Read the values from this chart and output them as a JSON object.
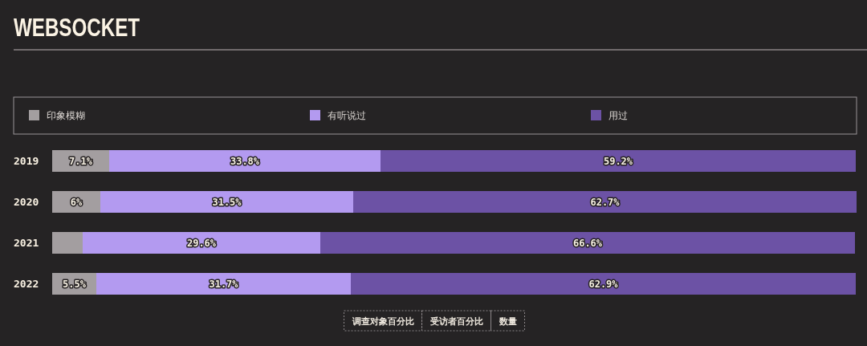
{
  "chart_data": {
    "type": "bar",
    "title": "WEBSOCKET",
    "orientation": "horizontal",
    "stacked": true,
    "categories": [
      "2019",
      "2020",
      "2021",
      "2022"
    ],
    "series": [
      {
        "name": "印象模糊",
        "color": "#a39ea0",
        "values": [
          7.1,
          6,
          3.8,
          5.5
        ],
        "value_labels": [
          "7.1%",
          "6%",
          null,
          "5.5%"
        ]
      },
      {
        "name": "有听说过",
        "color": "#b39af0",
        "values": [
          33.8,
          31.5,
          29.6,
          31.7
        ],
        "value_labels": [
          "33.8%",
          "31.5%",
          "29.6%",
          "31.7%"
        ]
      },
      {
        "name": "用过",
        "color": "#6c52a5",
        "values": [
          59.2,
          62.7,
          66.6,
          62.9
        ],
        "value_labels": [
          "59.2%",
          "62.7%",
          "66.6%",
          "62.9%"
        ]
      }
    ],
    "xlim": [
      0,
      100.2
    ],
    "legend": "top",
    "tick_labels": "y",
    "annotations": [
      "调查对象百分比",
      "受访者百分比",
      "数量"
    ]
  }
}
